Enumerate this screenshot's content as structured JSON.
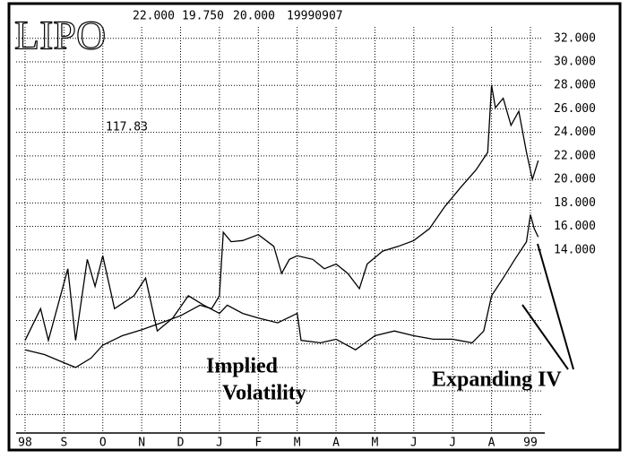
{
  "chart_data": {
    "type": "line",
    "title": "LIPO",
    "header_values": [
      "22.000",
      "19.750",
      "20.000",
      "19990907"
    ],
    "note": "117.83",
    "annotations": [
      "Implied",
      "Volatility",
      "Expanding IV"
    ],
    "xlim": [
      -0.23,
      13.3
    ],
    "xticks": [
      {
        "value": 0,
        "label": "98"
      },
      {
        "value": 1,
        "label": "S"
      },
      {
        "value": 2,
        "label": "O"
      },
      {
        "value": 3,
        "label": "N"
      },
      {
        "value": 4,
        "label": "D"
      },
      {
        "value": 5,
        "label": "J"
      },
      {
        "value": 6,
        "label": "F"
      },
      {
        "value": 7,
        "label": "M"
      },
      {
        "value": 8,
        "label": "A"
      },
      {
        "value": 9,
        "label": "M"
      },
      {
        "value": 10,
        "label": "J"
      },
      {
        "value": 11,
        "label": "J"
      },
      {
        "value": 12,
        "label": "A"
      },
      {
        "value": 13,
        "label": "99"
      }
    ],
    "ylim": [
      -1.5,
      34.5
    ],
    "yticks": [
      {
        "value": 32,
        "label": "32.000"
      },
      {
        "value": 30,
        "label": "30.000"
      },
      {
        "value": 28,
        "label": "28.000"
      },
      {
        "value": 26,
        "label": "26.000"
      },
      {
        "value": 24,
        "label": "24.000"
      },
      {
        "value": 22,
        "label": "22.000"
      },
      {
        "value": 20,
        "label": "20.000"
      },
      {
        "value": 18,
        "label": "18.000"
      },
      {
        "value": 16,
        "label": "16.000"
      },
      {
        "value": 14,
        "label": "14.000"
      }
    ],
    "ygrid": [
      0,
      2,
      4,
      6,
      8,
      10,
      12,
      14,
      16,
      18,
      20,
      22,
      24,
      26,
      28,
      30,
      32
    ],
    "grid": true,
    "series": [
      {
        "color": "#000000",
        "x": [
          0,
          0.5,
          1.0,
          1.3,
          1.7,
          2,
          2.5,
          3,
          3.5,
          4,
          4.5,
          4.8,
          5.0,
          5.1,
          5.3,
          5.6,
          6,
          6.4,
          6.6,
          6.8,
          7,
          7.4,
          7.7,
          8,
          8.3,
          8.6,
          8.8,
          9.2,
          9.6,
          10,
          10.4,
          10.8,
          11.2,
          11.6,
          11.9,
          12.0,
          12.1,
          12.3,
          12.5,
          12.7,
          12.9,
          13.05,
          13.2
        ],
        "values": [
          5.5,
          5.1,
          4.4,
          4.0,
          4.8,
          5.9,
          6.7,
          7.2,
          7.8,
          8.4,
          9.3,
          9.0,
          10.1,
          15.5,
          14.7,
          14.8,
          15.3,
          14.3,
          12.0,
          13.2,
          13.5,
          13.2,
          12.4,
          12.8,
          12.0,
          10.7,
          12.8,
          13.9,
          14.3,
          14.8,
          15.8,
          17.7,
          19.3,
          20.8,
          22.3,
          28.0,
          26.1,
          26.9,
          24.6,
          25.8,
          22.3,
          20.0,
          21.6
        ]
      },
      {
        "color": "#000000",
        "x": [
          0,
          0.4,
          0.6,
          1.1,
          1.3,
          1.6,
          1.8,
          2.0,
          2.3,
          2.8,
          3.1,
          3.4,
          3.8,
          4.2,
          4.6,
          5.0,
          5.2,
          5.6,
          6.0,
          6.5,
          7.0,
          7.1,
          7.6,
          8.0,
          8.5,
          9,
          9.5,
          10,
          10.5,
          11,
          11.5,
          11.8,
          12.0,
          12.3,
          12.6,
          12.9,
          13.0,
          13.1,
          13.2
        ],
        "values": [
          6.3,
          9.0,
          6.3,
          12.4,
          6.3,
          13.2,
          10.9,
          13.5,
          9.0,
          10.1,
          11.6,
          7.1,
          8.2,
          10.1,
          9.3,
          8.6,
          9.3,
          8.6,
          8.2,
          7.8,
          8.6,
          6.3,
          6.1,
          6.4,
          5.5,
          6.7,
          7.1,
          6.7,
          6.4,
          6.4,
          6.1,
          7.1,
          10.1,
          11.6,
          13.2,
          14.7,
          17.0,
          15.8,
          15.1
        ]
      }
    ]
  }
}
